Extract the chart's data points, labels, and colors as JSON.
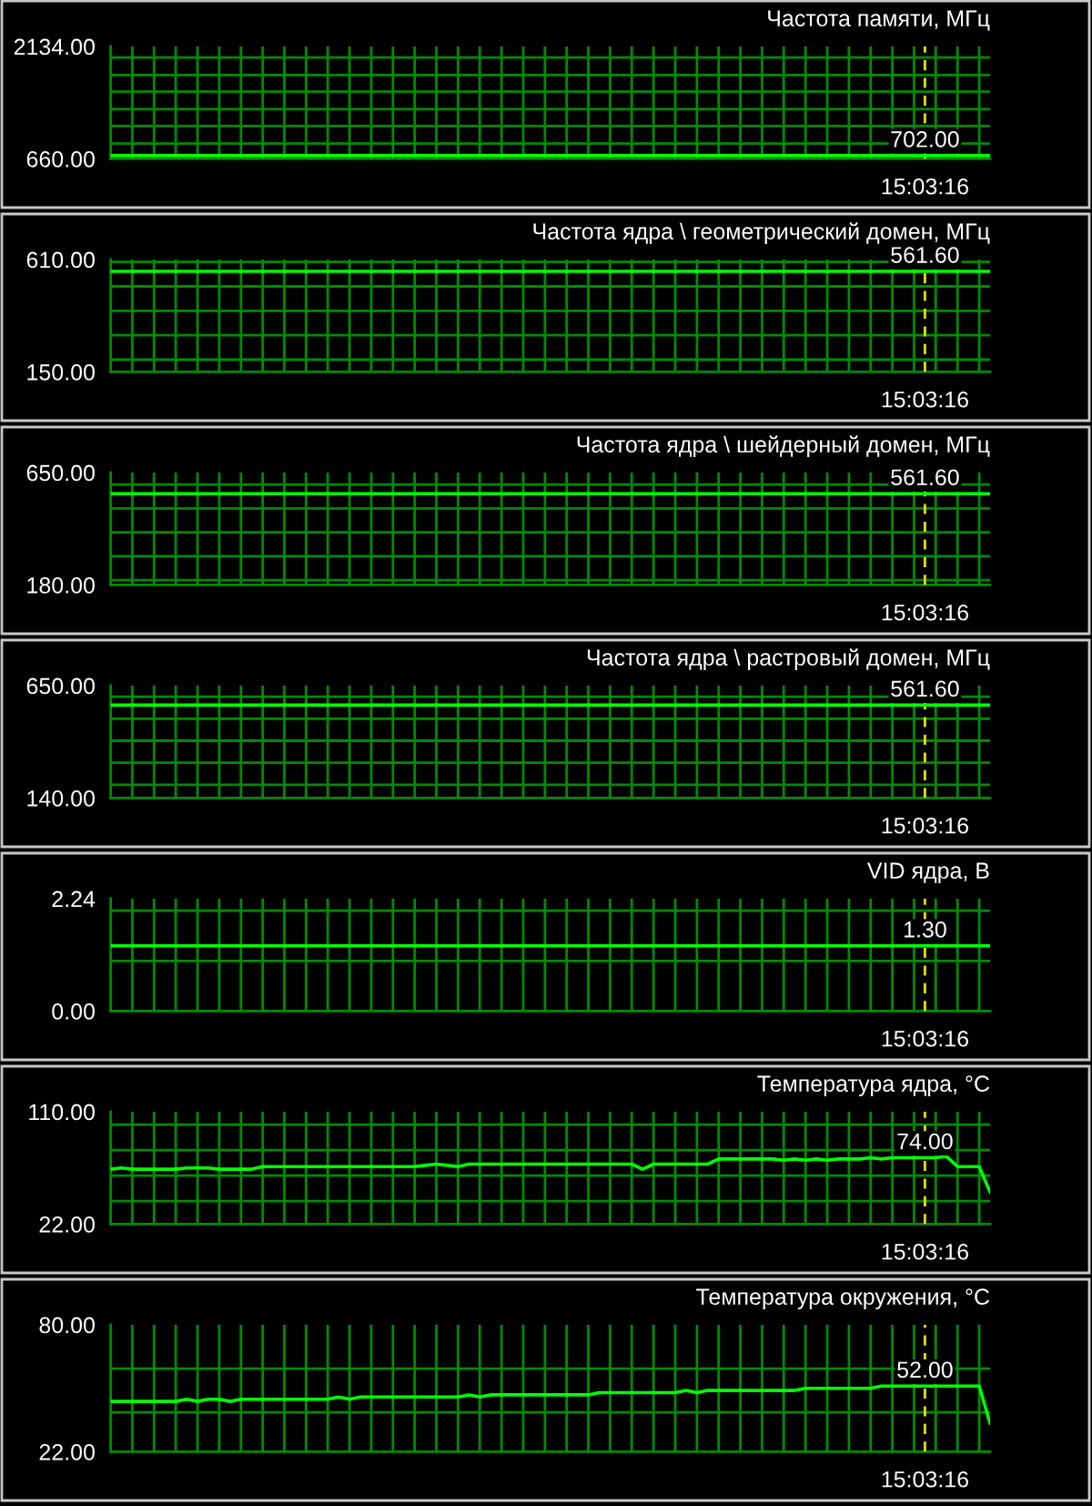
{
  "chart_data": [
    {
      "type": "line",
      "title": "Частота памяти, МГц",
      "categories": [
        null,
        null,
        null,
        null,
        null,
        null,
        null,
        null,
        null,
        null,
        null,
        null,
        null,
        null,
        null,
        null,
        null,
        null,
        null,
        null,
        null,
        null,
        null,
        null,
        null,
        null,
        null,
        null,
        null,
        null,
        null,
        null,
        null,
        null,
        null,
        null,
        null,
        null,
        null,
        null,
        null,
        null,
        null,
        null,
        null,
        null,
        null,
        null,
        null,
        null,
        null,
        null,
        null,
        null,
        null,
        null,
        null,
        null,
        null,
        null,
        null,
        null,
        null,
        null,
        null,
        null,
        null,
        null,
        null,
        null,
        null,
        null,
        null,
        null,
        null,
        "15:03:16",
        null,
        null,
        null,
        null,
        null,
        null
      ],
      "values": [
        702,
        702,
        702,
        702,
        702,
        702,
        702,
        702,
        702,
        702,
        702,
        702,
        702,
        702,
        702,
        702,
        702,
        702,
        702,
        702,
        702,
        702,
        702,
        702,
        702,
        702,
        702,
        702,
        702,
        702,
        702,
        702,
        702,
        702,
        702,
        702,
        702,
        702,
        702,
        702,
        702,
        702,
        702,
        702,
        702,
        702,
        702,
        702,
        702,
        702,
        702,
        702,
        702,
        702,
        702,
        702,
        702,
        702,
        702,
        702,
        702,
        702,
        702,
        702,
        702,
        702,
        702,
        702,
        702,
        702,
        702,
        702,
        702,
        702,
        702,
        702,
        702,
        702,
        702,
        702,
        702,
        702
      ],
      "value_labels": [
        null,
        null,
        null,
        null,
        null,
        null,
        null,
        null,
        null,
        null,
        null,
        null,
        null,
        null,
        null,
        null,
        null,
        null,
        null,
        null,
        null,
        null,
        null,
        null,
        null,
        null,
        null,
        null,
        null,
        null,
        null,
        null,
        null,
        null,
        null,
        null,
        null,
        null,
        null,
        null,
        null,
        null,
        null,
        null,
        null,
        null,
        null,
        null,
        null,
        null,
        null,
        null,
        null,
        null,
        null,
        null,
        null,
        null,
        null,
        null,
        null,
        null,
        null,
        null,
        null,
        null,
        null,
        null,
        null,
        null,
        null,
        null,
        null,
        null,
        null,
        "702.00",
        null,
        null,
        null,
        null,
        null,
        null
      ],
      "color": "#00ff00",
      "ylim": [
        660,
        2134
      ],
      "yticks": [
        {
          "value": 660,
          "label": "660.00"
        },
        {
          "value": 860,
          "label": null
        },
        {
          "value": 1090,
          "label": null
        },
        {
          "value": 1310,
          "label": null
        },
        {
          "value": 1540,
          "label": null
        },
        {
          "value": 1760,
          "label": null
        },
        {
          "value": 1990,
          "label": null
        },
        {
          "value": 2134,
          "label": "2134.00"
        }
      ],
      "grid": true,
      "ref_lines": [
        {
          "axis": "x",
          "value": "15:03:16",
          "color": "#e0e000",
          "line_style": "dashed"
        }
      ]
    },
    {
      "type": "line",
      "title": "Частота ядра \\ геометрический домен, МГц",
      "categories": [
        null,
        null,
        null,
        null,
        null,
        null,
        null,
        null,
        null,
        null,
        null,
        null,
        null,
        null,
        null,
        null,
        null,
        null,
        null,
        null,
        null,
        null,
        null,
        null,
        null,
        null,
        null,
        null,
        null,
        null,
        null,
        null,
        null,
        null,
        null,
        null,
        null,
        null,
        null,
        null,
        null,
        null,
        null,
        null,
        null,
        null,
        null,
        null,
        null,
        null,
        null,
        null,
        null,
        null,
        null,
        null,
        null,
        null,
        null,
        null,
        null,
        null,
        null,
        null,
        null,
        null,
        null,
        null,
        null,
        null,
        null,
        null,
        null,
        null,
        null,
        "15:03:16",
        null,
        null,
        null,
        null,
        null,
        null
      ],
      "values": [
        561.6,
        561.6,
        561.6,
        561.6,
        561.6,
        561.6,
        561.6,
        561.6,
        561.6,
        561.6,
        561.6,
        561.6,
        561.6,
        561.6,
        561.6,
        561.6,
        561.6,
        561.6,
        561.6,
        561.6,
        561.6,
        561.6,
        561.6,
        561.6,
        561.6,
        561.6,
        561.6,
        561.6,
        561.6,
        561.6,
        561.6,
        561.6,
        561.6,
        561.6,
        561.6,
        561.6,
        561.6,
        561.6,
        561.6,
        561.6,
        561.6,
        561.6,
        561.6,
        561.6,
        561.6,
        561.6,
        561.6,
        561.6,
        561.6,
        561.6,
        561.6,
        561.6,
        561.6,
        561.6,
        561.6,
        561.6,
        561.6,
        561.6,
        561.6,
        561.6,
        561.6,
        561.6,
        561.6,
        561.6,
        561.6,
        561.6,
        561.6,
        561.6,
        561.6,
        561.6,
        561.6,
        561.6,
        561.6,
        561.6,
        561.6,
        561.6,
        561.6,
        561.6,
        561.6,
        561.6,
        561.6,
        561.6
      ],
      "value_labels": [
        null,
        null,
        null,
        null,
        null,
        null,
        null,
        null,
        null,
        null,
        null,
        null,
        null,
        null,
        null,
        null,
        null,
        null,
        null,
        null,
        null,
        null,
        null,
        null,
        null,
        null,
        null,
        null,
        null,
        null,
        null,
        null,
        null,
        null,
        null,
        null,
        null,
        null,
        null,
        null,
        null,
        null,
        null,
        null,
        null,
        null,
        null,
        null,
        null,
        null,
        null,
        null,
        null,
        null,
        null,
        null,
        null,
        null,
        null,
        null,
        null,
        null,
        null,
        null,
        null,
        null,
        null,
        null,
        null,
        null,
        null,
        null,
        null,
        null,
        null,
        "561.60",
        null,
        null,
        null,
        null,
        null,
        null
      ],
      "color": "#00ff00",
      "ylim": [
        150,
        610
      ],
      "yticks": [
        {
          "value": 150,
          "label": "150.00"
        },
        {
          "value": 200,
          "label": null
        },
        {
          "value": 300,
          "label": null
        },
        {
          "value": 400,
          "label": null
        },
        {
          "value": 500,
          "label": null
        },
        {
          "value": 600,
          "label": null
        },
        {
          "value": 610,
          "label": "610.00"
        }
      ],
      "grid": true,
      "ref_lines": [
        {
          "axis": "x",
          "value": "15:03:16",
          "color": "#e0e000",
          "line_style": "dashed"
        }
      ]
    },
    {
      "type": "line",
      "title": "Частота ядра \\ шейдерный домен, МГц",
      "categories": [
        null,
        null,
        null,
        null,
        null,
        null,
        null,
        null,
        null,
        null,
        null,
        null,
        null,
        null,
        null,
        null,
        null,
        null,
        null,
        null,
        null,
        null,
        null,
        null,
        null,
        null,
        null,
        null,
        null,
        null,
        null,
        null,
        null,
        null,
        null,
        null,
        null,
        null,
        null,
        null,
        null,
        null,
        null,
        null,
        null,
        null,
        null,
        null,
        null,
        null,
        null,
        null,
        null,
        null,
        null,
        null,
        null,
        null,
        null,
        null,
        null,
        null,
        null,
        null,
        null,
        null,
        null,
        null,
        null,
        null,
        null,
        null,
        null,
        null,
        null,
        "15:03:16",
        null,
        null,
        null,
        null,
        null,
        null
      ],
      "values": [
        561.6,
        561.6,
        561.6,
        561.6,
        561.6,
        561.6,
        561.6,
        561.6,
        561.6,
        561.6,
        561.6,
        561.6,
        561.6,
        561.6,
        561.6,
        561.6,
        561.6,
        561.6,
        561.6,
        561.6,
        561.6,
        561.6,
        561.6,
        561.6,
        561.6,
        561.6,
        561.6,
        561.6,
        561.6,
        561.6,
        561.6,
        561.6,
        561.6,
        561.6,
        561.6,
        561.6,
        561.6,
        561.6,
        561.6,
        561.6,
        561.6,
        561.6,
        561.6,
        561.6,
        561.6,
        561.6,
        561.6,
        561.6,
        561.6,
        561.6,
        561.6,
        561.6,
        561.6,
        561.6,
        561.6,
        561.6,
        561.6,
        561.6,
        561.6,
        561.6,
        561.6,
        561.6,
        561.6,
        561.6,
        561.6,
        561.6,
        561.6,
        561.6,
        561.6,
        561.6,
        561.6,
        561.6,
        561.6,
        561.6,
        561.6,
        561.6,
        561.6,
        561.6,
        561.6,
        561.6,
        561.6,
        561.6
      ],
      "value_labels": [
        null,
        null,
        null,
        null,
        null,
        null,
        null,
        null,
        null,
        null,
        null,
        null,
        null,
        null,
        null,
        null,
        null,
        null,
        null,
        null,
        null,
        null,
        null,
        null,
        null,
        null,
        null,
        null,
        null,
        null,
        null,
        null,
        null,
        null,
        null,
        null,
        null,
        null,
        null,
        null,
        null,
        null,
        null,
        null,
        null,
        null,
        null,
        null,
        null,
        null,
        null,
        null,
        null,
        null,
        null,
        null,
        null,
        null,
        null,
        null,
        null,
        null,
        null,
        null,
        null,
        null,
        null,
        null,
        null,
        null,
        null,
        null,
        null,
        null,
        null,
        "561.60",
        null,
        null,
        null,
        null,
        null,
        null
      ],
      "color": "#00ff00",
      "ylim": [
        180,
        650
      ],
      "yticks": [
        {
          "value": 180,
          "label": "180.00"
        },
        {
          "value": 200,
          "label": null
        },
        {
          "value": 300,
          "label": null
        },
        {
          "value": 400,
          "label": null
        },
        {
          "value": 500,
          "label": null
        },
        {
          "value": 600,
          "label": null
        },
        {
          "value": 650,
          "label": "650.00"
        }
      ],
      "grid": true,
      "ref_lines": [
        {
          "axis": "x",
          "value": "15:03:16",
          "color": "#e0e000",
          "line_style": "dashed"
        }
      ]
    },
    {
      "type": "line",
      "title": "Частота ядра \\ растровый домен, МГц",
      "categories": [
        null,
        null,
        null,
        null,
        null,
        null,
        null,
        null,
        null,
        null,
        null,
        null,
        null,
        null,
        null,
        null,
        null,
        null,
        null,
        null,
        null,
        null,
        null,
        null,
        null,
        null,
        null,
        null,
        null,
        null,
        null,
        null,
        null,
        null,
        null,
        null,
        null,
        null,
        null,
        null,
        null,
        null,
        null,
        null,
        null,
        null,
        null,
        null,
        null,
        null,
        null,
        null,
        null,
        null,
        null,
        null,
        null,
        null,
        null,
        null,
        null,
        null,
        null,
        null,
        null,
        null,
        null,
        null,
        null,
        null,
        null,
        null,
        null,
        null,
        null,
        "15:03:16",
        null,
        null,
        null,
        null,
        null,
        null
      ],
      "values": [
        561.6,
        561.6,
        561.6,
        561.6,
        561.6,
        561.6,
        561.6,
        561.6,
        561.6,
        561.6,
        561.6,
        561.6,
        561.6,
        561.6,
        561.6,
        561.6,
        561.6,
        561.6,
        561.6,
        561.6,
        561.6,
        561.6,
        561.6,
        561.6,
        561.6,
        561.6,
        561.6,
        561.6,
        561.6,
        561.6,
        561.6,
        561.6,
        561.6,
        561.6,
        561.6,
        561.6,
        561.6,
        561.6,
        561.6,
        561.6,
        561.6,
        561.6,
        561.6,
        561.6,
        561.6,
        561.6,
        561.6,
        561.6,
        561.6,
        561.6,
        561.6,
        561.6,
        561.6,
        561.6,
        561.6,
        561.6,
        561.6,
        561.6,
        561.6,
        561.6,
        561.6,
        561.6,
        561.6,
        561.6,
        561.6,
        561.6,
        561.6,
        561.6,
        561.6,
        561.6,
        561.6,
        561.6,
        561.6,
        561.6,
        561.6,
        561.6,
        561.6,
        561.6,
        561.6,
        561.6,
        561.6,
        561.6
      ],
      "value_labels": [
        null,
        null,
        null,
        null,
        null,
        null,
        null,
        null,
        null,
        null,
        null,
        null,
        null,
        null,
        null,
        null,
        null,
        null,
        null,
        null,
        null,
        null,
        null,
        null,
        null,
        null,
        null,
        null,
        null,
        null,
        null,
        null,
        null,
        null,
        null,
        null,
        null,
        null,
        null,
        null,
        null,
        null,
        null,
        null,
        null,
        null,
        null,
        null,
        null,
        null,
        null,
        null,
        null,
        null,
        null,
        null,
        null,
        null,
        null,
        null,
        null,
        null,
        null,
        null,
        null,
        null,
        null,
        null,
        null,
        null,
        null,
        null,
        null,
        null,
        null,
        "561.60",
        null,
        null,
        null,
        null,
        null,
        null
      ],
      "color": "#00ff00",
      "ylim": [
        140,
        650
      ],
      "yticks": [
        {
          "value": 140,
          "label": "140.00"
        },
        {
          "value": 200,
          "label": null
        },
        {
          "value": 300,
          "label": null
        },
        {
          "value": 400,
          "label": null
        },
        {
          "value": 500,
          "label": null
        },
        {
          "value": 600,
          "label": null
        },
        {
          "value": 650,
          "label": "650.00"
        }
      ],
      "grid": true,
      "ref_lines": [
        {
          "axis": "x",
          "value": "15:03:16",
          "color": "#e0e000",
          "line_style": "dashed"
        }
      ]
    },
    {
      "type": "line",
      "title": "VID ядра, В",
      "categories": [
        null,
        null,
        null,
        null,
        null,
        null,
        null,
        null,
        null,
        null,
        null,
        null,
        null,
        null,
        null,
        null,
        null,
        null,
        null,
        null,
        null,
        null,
        null,
        null,
        null,
        null,
        null,
        null,
        null,
        null,
        null,
        null,
        null,
        null,
        null,
        null,
        null,
        null,
        null,
        null,
        null,
        null,
        null,
        null,
        null,
        null,
        null,
        null,
        null,
        null,
        null,
        null,
        null,
        null,
        null,
        null,
        null,
        null,
        null,
        null,
        null,
        null,
        null,
        null,
        null,
        null,
        null,
        null,
        null,
        null,
        null,
        null,
        null,
        null,
        null,
        "15:03:16",
        null,
        null,
        null,
        null,
        null,
        null
      ],
      "values": [
        1.3,
        1.3,
        1.3,
        1.3,
        1.3,
        1.3,
        1.3,
        1.3,
        1.3,
        1.3,
        1.3,
        1.3,
        1.3,
        1.3,
        1.3,
        1.3,
        1.3,
        1.3,
        1.3,
        1.3,
        1.3,
        1.3,
        1.3,
        1.3,
        1.3,
        1.3,
        1.3,
        1.3,
        1.3,
        1.3,
        1.3,
        1.3,
        1.3,
        1.3,
        1.3,
        1.3,
        1.3,
        1.3,
        1.3,
        1.3,
        1.3,
        1.3,
        1.3,
        1.3,
        1.3,
        1.3,
        1.3,
        1.3,
        1.3,
        1.3,
        1.3,
        1.3,
        1.3,
        1.3,
        1.3,
        1.3,
        1.3,
        1.3,
        1.3,
        1.3,
        1.3,
        1.3,
        1.3,
        1.3,
        1.3,
        1.3,
        1.3,
        1.3,
        1.3,
        1.3,
        1.3,
        1.3,
        1.3,
        1.3,
        1.3,
        1.3,
        1.3,
        1.3,
        1.3,
        1.3,
        1.3,
        1.3
      ],
      "value_labels": [
        null,
        null,
        null,
        null,
        null,
        null,
        null,
        null,
        null,
        null,
        null,
        null,
        null,
        null,
        null,
        null,
        null,
        null,
        null,
        null,
        null,
        null,
        null,
        null,
        null,
        null,
        null,
        null,
        null,
        null,
        null,
        null,
        null,
        null,
        null,
        null,
        null,
        null,
        null,
        null,
        null,
        null,
        null,
        null,
        null,
        null,
        null,
        null,
        null,
        null,
        null,
        null,
        null,
        null,
        null,
        null,
        null,
        null,
        null,
        null,
        null,
        null,
        null,
        null,
        null,
        null,
        null,
        null,
        null,
        null,
        null,
        null,
        null,
        null,
        null,
        "1.30",
        null,
        null,
        null,
        null,
        null,
        null
      ],
      "color": "#00ff00",
      "ylim": [
        0,
        2.24
      ],
      "yticks": [
        {
          "value": 0,
          "label": "0.00"
        },
        {
          "value": 1,
          "label": null
        },
        {
          "value": 2,
          "label": null
        },
        {
          "value": 2.24,
          "label": "2.24"
        }
      ],
      "grid": true,
      "ref_lines": [
        {
          "axis": "x",
          "value": "15:03:16",
          "color": "#e0e000",
          "line_style": "dashed"
        }
      ]
    },
    {
      "type": "line",
      "title": "Температура ядра, °C",
      "categories": [
        null,
        null,
        null,
        null,
        null,
        null,
        null,
        null,
        null,
        null,
        null,
        null,
        null,
        null,
        null,
        null,
        null,
        null,
        null,
        null,
        null,
        null,
        null,
        null,
        null,
        null,
        null,
        null,
        null,
        null,
        null,
        null,
        null,
        null,
        null,
        null,
        null,
        null,
        null,
        null,
        null,
        null,
        null,
        null,
        null,
        null,
        null,
        null,
        null,
        null,
        null,
        null,
        null,
        null,
        null,
        null,
        null,
        null,
        null,
        null,
        null,
        null,
        null,
        null,
        null,
        null,
        null,
        null,
        null,
        null,
        null,
        null,
        null,
        null,
        null,
        "15:03:16",
        null,
        null,
        null,
        null,
        null,
        null
      ],
      "values": [
        65,
        66,
        65,
        65,
        65,
        65,
        65,
        66,
        66,
        66,
        65,
        65,
        65,
        65,
        67,
        67,
        67,
        67,
        67,
        67,
        67,
        67,
        67,
        67,
        67,
        67,
        67,
        67,
        67,
        68,
        69,
        68,
        67,
        69,
        69,
        69,
        69,
        69,
        69,
        69,
        69,
        69,
        69,
        69,
        69,
        69,
        69,
        69,
        69,
        65,
        69,
        69,
        69,
        69,
        69,
        69,
        73,
        73,
        73,
        73,
        73,
        73,
        72,
        73,
        72,
        73,
        72,
        73,
        73,
        73,
        74,
        73,
        74,
        74,
        74,
        74,
        74,
        75,
        67,
        67,
        67,
        47
      ],
      "value_labels": [
        null,
        null,
        null,
        null,
        null,
        null,
        null,
        null,
        null,
        null,
        null,
        null,
        null,
        null,
        null,
        null,
        null,
        null,
        null,
        null,
        null,
        null,
        null,
        null,
        null,
        null,
        null,
        null,
        null,
        null,
        null,
        null,
        null,
        null,
        null,
        null,
        null,
        null,
        null,
        null,
        null,
        null,
        null,
        null,
        null,
        null,
        null,
        null,
        null,
        null,
        null,
        null,
        null,
        null,
        null,
        null,
        null,
        null,
        null,
        null,
        null,
        null,
        null,
        null,
        null,
        null,
        null,
        null,
        null,
        null,
        null,
        null,
        null,
        null,
        null,
        "74.00",
        null,
        null,
        null,
        null,
        null,
        null
      ],
      "color": "#00ff00",
      "ylim": [
        22,
        110
      ],
      "yticks": [
        {
          "value": 22,
          "label": "22.00"
        },
        {
          "value": 40,
          "label": null
        },
        {
          "value": 60,
          "label": null
        },
        {
          "value": 80,
          "label": null
        },
        {
          "value": 100,
          "label": null
        },
        {
          "value": 110,
          "label": "110.00"
        }
      ],
      "grid": true,
      "ref_lines": [
        {
          "axis": "x",
          "value": "15:03:16",
          "color": "#e0e000",
          "line_style": "dashed"
        }
      ]
    },
    {
      "type": "line",
      "title": "Температура окружения, °C",
      "categories": [
        null,
        null,
        null,
        null,
        null,
        null,
        null,
        null,
        null,
        null,
        null,
        null,
        null,
        null,
        null,
        null,
        null,
        null,
        null,
        null,
        null,
        null,
        null,
        null,
        null,
        null,
        null,
        null,
        null,
        null,
        null,
        null,
        null,
        null,
        null,
        null,
        null,
        null,
        null,
        null,
        null,
        null,
        null,
        null,
        null,
        null,
        null,
        null,
        null,
        null,
        null,
        null,
        null,
        null,
        null,
        null,
        null,
        null,
        null,
        null,
        null,
        null,
        null,
        null,
        null,
        null,
        null,
        null,
        null,
        null,
        null,
        null,
        null,
        null,
        null,
        "15:03:16",
        null,
        null,
        null,
        null,
        null,
        null
      ],
      "values": [
        45,
        45,
        45,
        45,
        45,
        45,
        45,
        46,
        45,
        46,
        46,
        45,
        46,
        46,
        46,
        46,
        46,
        46,
        46,
        46,
        46,
        47,
        46,
        47,
        47,
        47,
        47,
        47,
        47,
        47,
        47,
        47,
        47,
        48,
        47,
        48,
        48,
        48,
        48,
        48,
        48,
        48,
        48,
        48,
        48,
        49,
        49,
        49,
        49,
        49,
        49,
        49,
        49,
        50,
        49,
        50,
        50,
        50,
        50,
        50,
        50,
        50,
        50,
        50,
        51,
        51,
        51,
        51,
        51,
        51,
        51,
        52,
        52,
        52,
        52,
        52,
        52,
        52,
        52,
        52,
        52,
        35
      ],
      "value_labels": [
        null,
        null,
        null,
        null,
        null,
        null,
        null,
        null,
        null,
        null,
        null,
        null,
        null,
        null,
        null,
        null,
        null,
        null,
        null,
        null,
        null,
        null,
        null,
        null,
        null,
        null,
        null,
        null,
        null,
        null,
        null,
        null,
        null,
        null,
        null,
        null,
        null,
        null,
        null,
        null,
        null,
        null,
        null,
        null,
        null,
        null,
        null,
        null,
        null,
        null,
        null,
        null,
        null,
        null,
        null,
        null,
        null,
        null,
        null,
        null,
        null,
        null,
        null,
        null,
        null,
        null,
        null,
        null,
        null,
        null,
        null,
        null,
        null,
        null,
        null,
        "52.00",
        null,
        null,
        null,
        null,
        null,
        null
      ],
      "color": "#00ff00",
      "ylim": [
        22,
        80
      ],
      "yticks": [
        {
          "value": 22,
          "label": "22.00"
        },
        {
          "value": 40,
          "label": null
        },
        {
          "value": 60,
          "label": null
        },
        {
          "value": 80,
          "label": "80.00"
        }
      ],
      "grid": true,
      "ref_lines": [
        {
          "axis": "x",
          "value": "15:03:16",
          "color": "#e0e000",
          "line_style": "dashed"
        }
      ]
    }
  ]
}
